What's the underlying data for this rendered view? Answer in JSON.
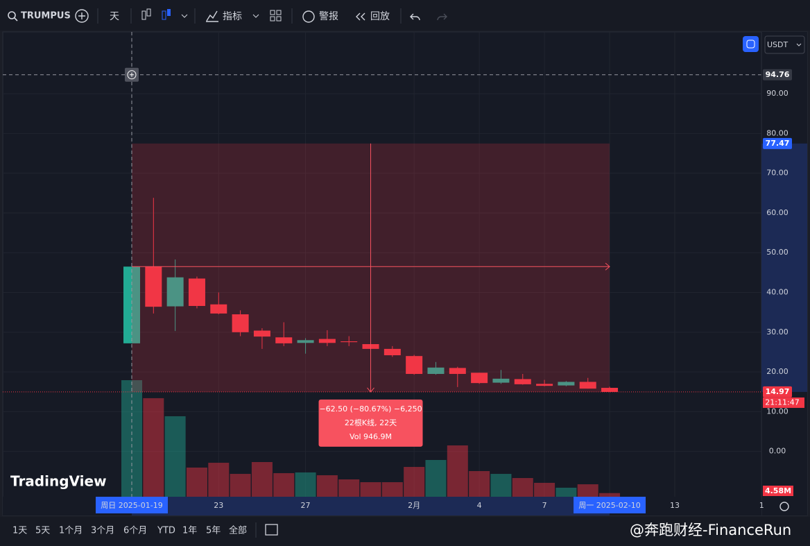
{
  "toolbar": {
    "symbol": "TRUMPUS",
    "interval": "天",
    "indicators": "指标",
    "alerts": "警报",
    "replay": "回放",
    "currency": "USDT"
  },
  "bottom_bar": {
    "ranges": [
      "1天",
      "5天",
      "1个月",
      "3个月",
      "6个月",
      "YTD",
      "1年",
      "5年",
      "全部"
    ]
  },
  "watermark": {
    "logo": "TradingView",
    "credit": "@奔跑财经-FinanceRun"
  },
  "chart_data": {
    "type": "candlestick",
    "categories": [
      "周日 2025-01-19",
      null,
      null,
      null,
      "23",
      null,
      null,
      null,
      "27",
      null,
      null,
      null,
      null,
      "2月",
      null,
      null,
      "4",
      null,
      null,
      "7",
      null,
      null,
      "周一 2025-02-10"
    ],
    "extra_categories": [
      null,
      null,
      "13",
      null,
      null,
      null,
      "1"
    ],
    "open": [
      27.2,
      46.5,
      36.5,
      43.5,
      37.0,
      34.5,
      30.4,
      28.7,
      27.3,
      28.3,
      27.7,
      27.0,
      25.8,
      24.0,
      19.5,
      21.0,
      19.8,
      17.3,
      18.2,
      17.0,
      16.6,
      17.5,
      16.0
    ],
    "high": [
      46.5,
      63.8,
      48.3,
      44.0,
      40.0,
      35.5,
      31.0,
      32.5,
      28.5,
      30.5,
      29.0,
      27.5,
      26.5,
      24.3,
      22.5,
      21.3,
      19.8,
      20.5,
      19.5,
      18.0,
      17.7,
      18.5,
      16.3
    ],
    "low": [
      27.2,
      34.7,
      30.3,
      36.0,
      34.5,
      29.0,
      25.8,
      26.5,
      24.6,
      26.5,
      26.5,
      25.5,
      23.8,
      19.3,
      19.3,
      16.2,
      17.0,
      17.0,
      16.8,
      16.4,
      16.4,
      15.8,
      14.9
    ],
    "close": [
      46.5,
      36.4,
      43.8,
      36.6,
      34.7,
      30.0,
      28.9,
      27.2,
      28.0,
      27.3,
      27.5,
      25.8,
      24.2,
      19.5,
      21.1,
      19.5,
      17.2,
      18.3,
      16.9,
      16.5,
      17.5,
      15.8,
      14.97
    ],
    "volume": [
      145.8,
      123.3,
      100.7,
      36.5,
      42.5,
      28.6,
      43.4,
      29.5,
      30.4,
      26.9,
      21.7,
      18.2,
      18.2,
      37.3,
      46.0,
      64.2,
      32.1,
      28.6,
      23.4,
      17.4,
      11.3,
      15.6,
      4.58
    ],
    "volume_value_labels": [
      null,
      null,
      null,
      null,
      null,
      null,
      null,
      null,
      null,
      null,
      null,
      null,
      null,
      null,
      null,
      null,
      null,
      null,
      null,
      null,
      null,
      null,
      "4.58M"
    ],
    "up_color": "#22ab94",
    "down_color": "#f23645",
    "ylim": [
      -11.4,
      105.2
    ],
    "yticks": [
      {
        "value": 0,
        "label": "0.00"
      },
      {
        "value": 10,
        "label": "10.00"
      },
      {
        "value": 20,
        "label": "20.00"
      },
      {
        "value": 30,
        "label": "30.00"
      },
      {
        "value": 40,
        "label": "40.00"
      },
      {
        "value": 50,
        "label": "50.00"
      },
      {
        "value": 60,
        "label": "60.00"
      },
      {
        "value": 70,
        "label": "70.00"
      },
      {
        "value": 80,
        "label": "80.00"
      },
      {
        "value": 90,
        "label": "90.00"
      }
    ],
    "grid": true,
    "crosshair_price": 94.76,
    "last_price": 14.97,
    "countdown": "21:11:47",
    "measure": {
      "start": 77.47,
      "end": 14.97,
      "change": "−62.50 (−80.67%) −6,250",
      "bars": "22根K线, 22天",
      "volume": "Vol 946.9M"
    }
  }
}
